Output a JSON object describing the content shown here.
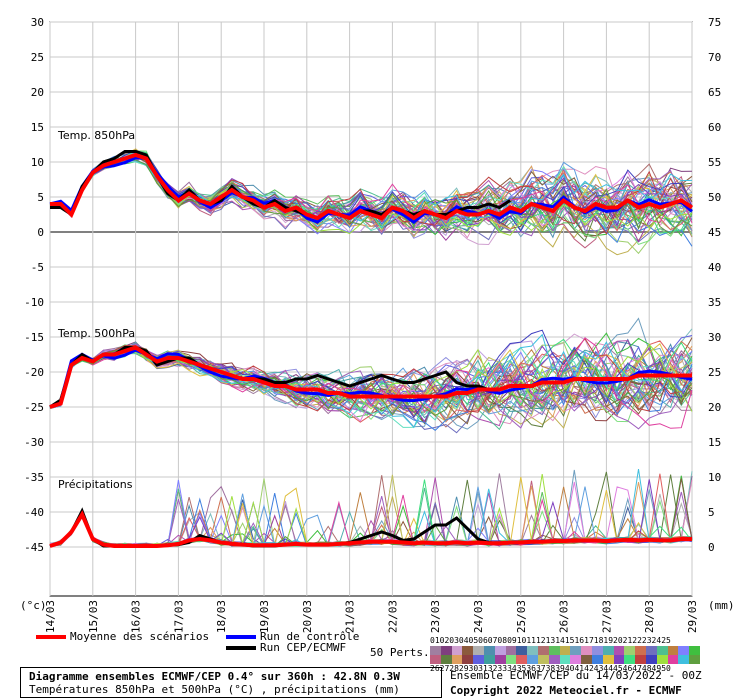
{
  "chart_data": {
    "type": "line",
    "left_axis": {
      "label": "(°c)",
      "ticks": [
        30,
        25,
        20,
        15,
        10,
        5,
        0,
        -5,
        -10,
        -15,
        -20,
        -25,
        -30,
        -35,
        -40,
        -45
      ],
      "range": [
        -45,
        30
      ]
    },
    "right_axis": {
      "label": "(mm)",
      "ticks": [
        75,
        70,
        65,
        60,
        55,
        50,
        45,
        40,
        35,
        30,
        25,
        20,
        15,
        10,
        5,
        0
      ]
    },
    "x_axis": {
      "ticks": [
        "14/03",
        "15/03",
        "16/03",
        "17/03",
        "18/03",
        "19/03",
        "20/03",
        "21/03",
        "22/03",
        "23/03",
        "24/03",
        "25/03",
        "26/03",
        "27/03",
        "28/03",
        "29/03"
      ],
      "step_hours": 6,
      "steps": 61
    },
    "panels": [
      {
        "title": "Temp. 850hPa",
        "unit": "°C",
        "mean": [
          4,
          4,
          2.5,
          6,
          8.5,
          9.5,
          10,
          10.5,
          11,
          10.5,
          8,
          6,
          4.5,
          5.5,
          4.5,
          4,
          5,
          6,
          5,
          4.5,
          3.5,
          4,
          3,
          3.5,
          2.5,
          2,
          3,
          2.5,
          2,
          3,
          2.5,
          2,
          3.5,
          3,
          2,
          3,
          2.5,
          2,
          3,
          2.5,
          2.5,
          3,
          2.5,
          3.5,
          3,
          4,
          3.5,
          3,
          4.5,
          3.5,
          3,
          4,
          3.5,
          3.5,
          4.5,
          3.5,
          4,
          3.5,
          4,
          4.5,
          3.5
        ],
        "spread": [
          0.5,
          0.5,
          0.5,
          0.6,
          0.8,
          1,
          1,
          1.2,
          1.5,
          1.5,
          1.5,
          1.5,
          1.5,
          1.8,
          1.8,
          2,
          2,
          2.2,
          2.2,
          2.4,
          2.5,
          2.6,
          2.8,
          3,
          3,
          3.2,
          3.2,
          3.4,
          3.5,
          3.6,
          3.8,
          4,
          4,
          4.2,
          4.4,
          4.5,
          4.6,
          4.8,
          5,
          5,
          5.2,
          5.4,
          5.5,
          5.6,
          5.8,
          6,
          6,
          6.2,
          6.3,
          6.4,
          6.5,
          6.6,
          6.7,
          6.8,
          6.9,
          7,
          7,
          7,
          7,
          7,
          7
        ],
        "deterministic": [
          3.5,
          3.5,
          2.5,
          6.5,
          8.5,
          10,
          10.5,
          11.5,
          11.5,
          11,
          8,
          5.5,
          4.5,
          6,
          4.5,
          4,
          4.5,
          6.5,
          5,
          4,
          3.5,
          4.5,
          3.5,
          3,
          2.5,
          2,
          3,
          2.5,
          2,
          3,
          3,
          2.5,
          3.5,
          3,
          2.5,
          3,
          2.5,
          2.5,
          3,
          3.5,
          3.5,
          4,
          3.5,
          4.5
        ]
      },
      {
        "title": "Temp. 500hPa",
        "unit": "°C",
        "mean": [
          -25,
          -24.5,
          -19,
          -18,
          -18.5,
          -17.5,
          -17.5,
          -17,
          -16.5,
          -17.5,
          -18.5,
          -18,
          -18,
          -18.5,
          -19,
          -19.5,
          -20,
          -20.5,
          -21,
          -21,
          -21.5,
          -22,
          -22,
          -22.5,
          -22.5,
          -22.5,
          -23,
          -23,
          -23.5,
          -23.5,
          -23.5,
          -23.5,
          -23.5,
          -23.5,
          -23.5,
          -23.5,
          -23.5,
          -23.5,
          -23,
          -23,
          -22.5,
          -22.5,
          -22.5,
          -22,
          -22,
          -22,
          -21.5,
          -21.5,
          -21.5,
          -21,
          -21,
          -21,
          -21,
          -21,
          -21,
          -20.5,
          -20.5,
          -20.5,
          -20.5,
          -20.5,
          -20.5
        ],
        "spread": [
          0.5,
          0.6,
          0.6,
          0.7,
          0.8,
          1,
          1.1,
          1.2,
          1.4,
          1.5,
          1.6,
          1.6,
          1.7,
          1.8,
          1.9,
          2,
          2.2,
          2.4,
          2.6,
          2.8,
          3,
          3.2,
          3.4,
          3.5,
          3.6,
          3.8,
          4,
          4.2,
          4.4,
          4.6,
          4.8,
          5,
          5.2,
          5.4,
          5.6,
          5.8,
          6,
          6.2,
          6.4,
          6.6,
          6.8,
          7,
          7,
          7,
          7.2,
          7.4,
          7.5,
          7.6,
          7.8,
          8,
          8,
          8,
          8,
          8,
          8,
          8,
          8,
          8,
          8,
          8,
          8
        ],
        "deterministic": [
          -25,
          -24,
          -19,
          -17.5,
          -18.5,
          -17.5,
          -17.5,
          -16.5,
          -16.5,
          -17,
          -19,
          -18.5,
          -18,
          -18,
          -19,
          -19.5,
          -20,
          -20.5,
          -21,
          -21,
          -21,
          -21.5,
          -21.5,
          -21,
          -21,
          -20.5,
          -21,
          -21.5,
          -22,
          -21.5,
          -21,
          -20.5,
          -21,
          -21.5,
          -21.5,
          -21,
          -20.5,
          -20,
          -21.5,
          -22,
          -22,
          -22.5
        ]
      },
      {
        "title": "Précipitations",
        "unit": "mm",
        "mean": [
          0,
          0.5,
          2,
          4.5,
          1,
          0.2,
          0,
          0,
          0,
          0,
          0,
          0.1,
          0.3,
          0.8,
          1,
          0.8,
          0.5,
          0.3,
          0.2,
          0.1,
          0.1,
          0.1,
          0.2,
          0.3,
          0.2,
          0.2,
          0.2,
          0.3,
          0.4,
          0.5,
          0.6,
          0.6,
          0.6,
          0.5,
          0.4,
          0.5,
          0.4,
          0.4,
          0.5,
          0.4,
          0.5,
          0.4,
          0.4,
          0.5,
          0.5,
          0.6,
          0.6,
          0.7,
          0.7,
          0.8,
          0.8,
          0.8,
          0.7,
          0.8,
          0.9,
          0.8,
          0.9,
          0.8,
          0.8,
          1,
          1
        ],
        "deterministic": [
          0,
          0.5,
          2,
          5,
          1,
          0,
          0,
          0,
          0,
          0,
          0,
          0.1,
          0.2,
          0.5,
          1.5,
          1,
          0.5,
          0.3,
          0.2,
          0,
          0,
          0,
          0.2,
          0.3,
          0.2,
          0.2,
          0.2,
          0.3,
          0.5,
          1,
          1.5,
          2,
          1.5,
          0.8,
          1,
          2,
          3,
          3,
          4,
          2.5,
          1,
          0.5,
          0.3
        ]
      }
    ],
    "series": [
      {
        "name": "Moyenne des scénarios",
        "color": "#ff0000",
        "role": "mean"
      },
      {
        "name": "Run de contrôle",
        "color": "#0000ff",
        "role": "control"
      },
      {
        "name": "Run CEP/ECMWF",
        "color": "#000000",
        "role": "deterministic"
      }
    ],
    "ensemble_members": 50,
    "grid": true
  },
  "legend": {
    "mean_label": "Moyenne des scénarios",
    "control_label": "Run de contrôle",
    "det_label": "Run CEP/ECMWF",
    "perts_label": "50 Perts.",
    "perts_row1": "01020304050607080910111213141516171819202122232425",
    "perts_row2": "26272829303132333435363738394041424344454647484950"
  },
  "member_colors": [
    "#a07fa0",
    "#7f3f7f",
    "#d0a0d0",
    "#8c5a3c",
    "#b0b0b0",
    "#4f8faf",
    "#bf9fdf",
    "#9f6f9f",
    "#3f5f9f",
    "#7fbfbf",
    "#af6f6f",
    "#5fbf5f",
    "#bfaf4f",
    "#6f9fbf",
    "#df8fbf",
    "#8f8fdf",
    "#4fafaf",
    "#af4faf",
    "#9fcf6f",
    "#cf6f4f",
    "#6f6fbf",
    "#4fbf8f",
    "#bf7f3f",
    "#7f7fff",
    "#3fbf3f",
    "#bf5f7f",
    "#5f7f3f",
    "#df9f5f",
    "#8f3f3f",
    "#5f5fdf",
    "#3f9f9f",
    "#9f3f9f",
    "#7fdf7f",
    "#df5f5f",
    "#5f9fdf",
    "#bfbf5f",
    "#9f5fbf",
    "#5fdfbf",
    "#df7fdf",
    "#7f5f3f",
    "#3f7fdf",
    "#dfbf3f",
    "#7f3fbf",
    "#3fdf7f",
    "#bf3f3f",
    "#3f3fbf",
    "#9fdf3f",
    "#df3f9f",
    "#3fbfdf",
    "#5f9f3f"
  ],
  "info": {
    "line1": "Diagramme ensembles ECMWF/CEP 0.4° sur 360h : 42.8N 0.3W",
    "line2": "Températures 850hPa et 500hPa (°C) , précipitations (mm)"
  },
  "footer": {
    "run": "Ensemble ECMWF/CEP du 14/03/2022 - 00Z",
    "copyright": "Copyright 2022 Meteociel.fr - ECMWF"
  }
}
